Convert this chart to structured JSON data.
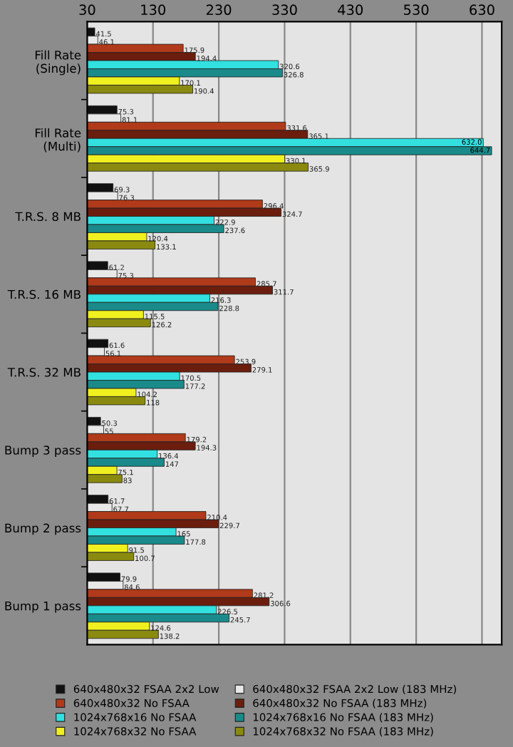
{
  "chart_data": {
    "type": "bar",
    "orientation": "horizontal",
    "categories": [
      "Fill Rate\n(Single)",
      "Fill Rate\n(Multi)",
      "T.R.S. 8 MB",
      "T.R.S. 16 MB",
      "T.R.S. 32 MB",
      "Bump 3 pass",
      "Bump 2 pass",
      "Bump 1 pass"
    ],
    "series": [
      {
        "name": "640x480x32 FSAA 2x2 Low",
        "color": "#111111",
        "values": [
          41.5,
          75.3,
          69.3,
          61.2,
          61.6,
          50.3,
          61.7,
          79.9
        ]
      },
      {
        "name": "640x480x32 FSAA 2x2 Low (183 MHz)",
        "color": "#e8e8e8",
        "values": [
          46.1,
          81.1,
          76.3,
          75.3,
          56.1,
          55,
          67.7,
          84.6
        ]
      },
      {
        "name": "640x480x32 No FSAA",
        "color": "#b03a1a",
        "values": [
          175.9,
          331.6,
          296.4,
          285.7,
          253.9,
          179.2,
          210.4,
          281.2
        ]
      },
      {
        "name": "640x480x32 No FSAA (183 MHz)",
        "color": "#6b1e0e",
        "values": [
          194.4,
          365.1,
          324.7,
          311.7,
          279.1,
          194.3,
          229.7,
          306.6
        ]
      },
      {
        "name": "1024x768x16 No FSAA",
        "color": "#33e0e0",
        "values": [
          320.6,
          632.0,
          222.9,
          216.3,
          170.5,
          136.4,
          165,
          226.5
        ],
        "value_labels": [
          "320.6",
          "632.0",
          "222.9",
          "216.3",
          "170.5",
          "136.4",
          "165",
          "226.5"
        ]
      },
      {
        "name": "1024x768x16 No FSAA (183 MHz)",
        "color": "#1a8a8a",
        "values": [
          326.8,
          644.7,
          237.6,
          228.8,
          177.2,
          147,
          177.8,
          245.7
        ]
      },
      {
        "name": "1024x768x32 No FSAA",
        "color": "#f0f020",
        "values": [
          170.1,
          330.1,
          120.4,
          115.5,
          104.2,
          75.1,
          91.5,
          124.6
        ]
      },
      {
        "name": "1024x768x32 No FSAA (183 MHz)",
        "color": "#8a8a10",
        "values": [
          190.4,
          365.9,
          133.1,
          126.2,
          118,
          83,
          100.7,
          138.2
        ]
      }
    ],
    "xlim": [
      30,
      660
    ],
    "xticks": [
      30,
      130,
      230,
      330,
      430,
      530,
      630
    ],
    "grid": "x",
    "legend": "bottom",
    "data_labels": true
  }
}
